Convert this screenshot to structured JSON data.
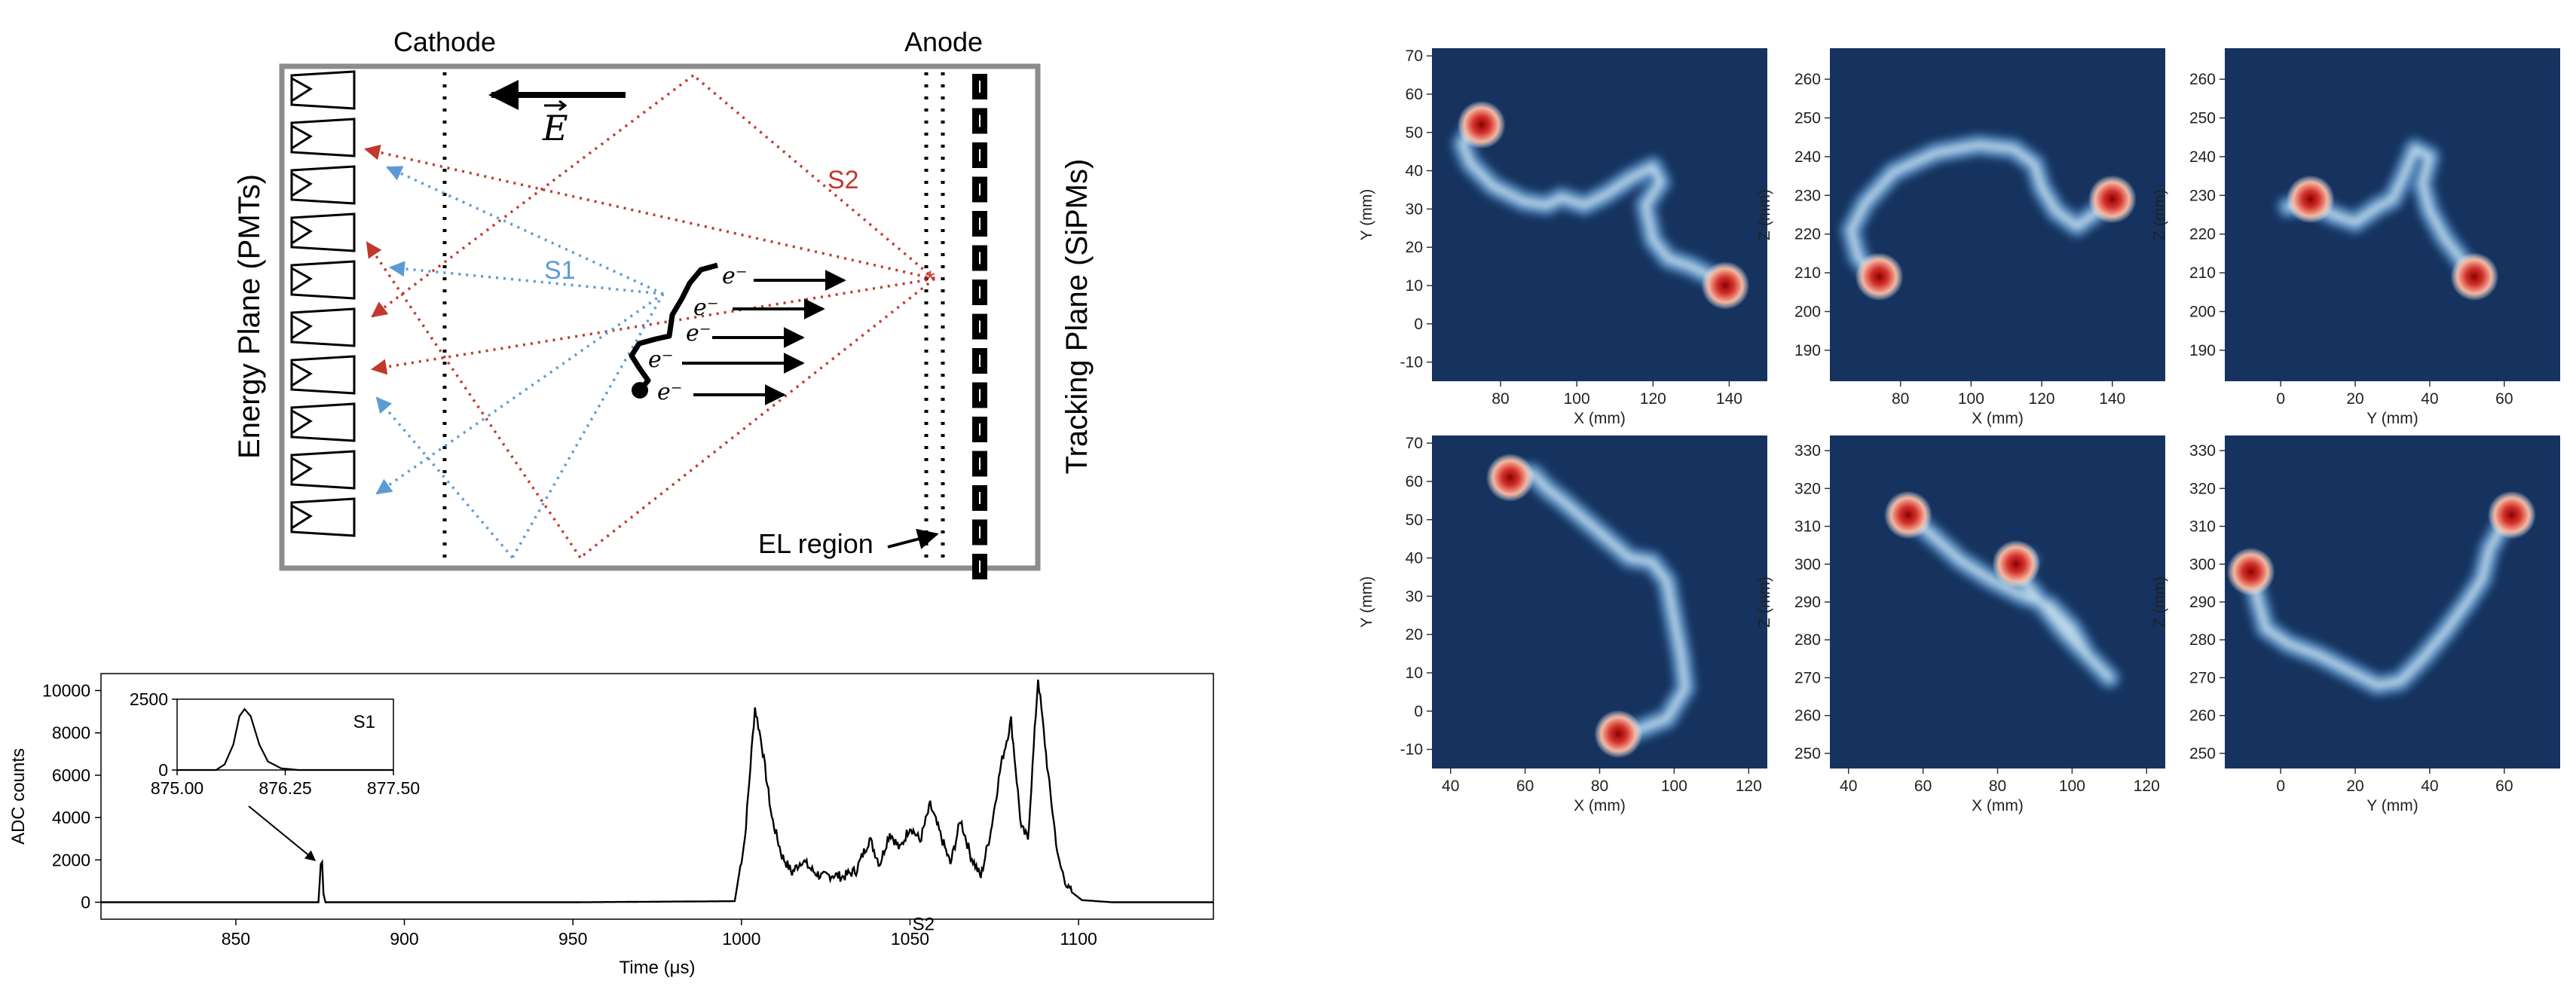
{
  "diagram": {
    "cathode_label": "Cathode",
    "anode_label": "Anode",
    "energy_plane_label": "Energy Plane (PMTs)",
    "tracking_plane_label": "Tracking Plane (SiPMs)",
    "field_label": "E",
    "s1_label": "S1",
    "s2_label": "S2",
    "el_region_label": "EL region",
    "electron_label": "e⁻",
    "colors": {
      "frame": "#8c8c8c",
      "s1": "#5b9bd5",
      "s2": "#c0392b",
      "ink": "#000000"
    }
  },
  "waveform": {
    "chart_data": {
      "type": "line",
      "xlabel": "Time (μs)",
      "ylabel": "ADC counts",
      "xlim": [
        810,
        1140
      ],
      "ylim": [
        -800,
        10800
      ],
      "xticks": [
        "850",
        "900",
        "950",
        "1000",
        "1050",
        "1100"
      ],
      "yticks": [
        "0",
        "2000",
        "4000",
        "6000",
        "8000",
        "10000"
      ],
      "annotations": [
        "S2"
      ],
      "series": [
        {
          "x": [
            810,
            874.5,
            875.2,
            875.6,
            876.0,
            876.6,
            900,
            950,
            998,
            1001,
            1004,
            1006,
            1009,
            1012,
            1015,
            1018,
            1021,
            1024,
            1027,
            1030,
            1034,
            1038,
            1041,
            1044,
            1047,
            1050,
            1053,
            1056,
            1059,
            1062,
            1065,
            1068,
            1071,
            1074,
            1077,
            1080,
            1083,
            1085,
            1088,
            1091,
            1094,
            1097,
            1101,
            1110,
            1140
          ],
          "y": [
            0,
            0,
            1800,
            1900,
            400,
            0,
            0,
            0,
            50,
            3000,
            9200,
            7500,
            4000,
            2200,
            1400,
            2000,
            1500,
            1200,
            1300,
            1200,
            1500,
            3000,
            1800,
            3300,
            2500,
            3600,
            2900,
            4600,
            3200,
            1800,
            3900,
            2200,
            1200,
            3400,
            6500,
            8600,
            3500,
            3000,
            10600,
            6000,
            2000,
            600,
            100,
            0,
            0
          ]
        }
      ],
      "inset": {
        "label": "S1",
        "xlim": [
          875.0,
          877.5
        ],
        "ylim": [
          0,
          2500
        ],
        "xticks": [
          "875.00",
          "876.25",
          "877.50"
        ],
        "yticks": [
          "0",
          "2500"
        ],
        "x": [
          875.0,
          875.45,
          875.55,
          875.65,
          875.72,
          875.78,
          875.85,
          875.95,
          876.05,
          876.2,
          876.4,
          877.5
        ],
        "y": [
          0,
          0,
          200,
          900,
          1900,
          2150,
          1900,
          900,
          300,
          60,
          0,
          0
        ]
      }
    }
  },
  "tracks": {
    "chart_data": [
      {
        "type": "heatmap",
        "xlabel": "X (mm)",
        "ylabel": "Y (mm)",
        "xlim": [
          62,
          150
        ],
        "ylim": [
          -15,
          72
        ],
        "xticks": [
          "80",
          "100",
          "120",
          "140"
        ],
        "yticks": [
          "-10",
          "0",
          "10",
          "20",
          "30",
          "40",
          "50",
          "60",
          "70"
        ],
        "xtick_values": [
          80,
          100,
          120,
          140
        ],
        "ytick_values": [
          -10,
          0,
          10,
          20,
          30,
          40,
          50,
          60,
          70
        ],
        "path": [
          [
            72,
            50
          ],
          [
            70,
            47
          ],
          [
            72,
            42
          ],
          [
            78,
            36
          ],
          [
            86,
            32
          ],
          [
            92,
            31
          ],
          [
            96,
            33
          ],
          [
            102,
            31
          ],
          [
            108,
            34
          ],
          [
            114,
            38
          ],
          [
            120,
            41
          ],
          [
            122,
            37
          ],
          [
            118,
            31
          ],
          [
            120,
            22
          ],
          [
            124,
            17
          ],
          [
            130,
            15
          ],
          [
            136,
            12
          ],
          [
            139,
            10
          ]
        ],
        "blobs": [
          [
            75,
            52
          ],
          [
            139,
            10
          ]
        ]
      },
      {
        "type": "heatmap",
        "xlabel": "X (mm)",
        "ylabel": "Z (mm)",
        "xlim": [
          60,
          155
        ],
        "ylim": [
          182,
          268
        ],
        "xticks": [
          "80",
          "100",
          "120",
          "140"
        ],
        "yticks": [
          "190",
          "200",
          "210",
          "220",
          "230",
          "240",
          "250",
          "260"
        ],
        "xtick_values": [
          80,
          100,
          120,
          140
        ],
        "ytick_values": [
          190,
          200,
          210,
          220,
          230,
          240,
          250,
          260
        ],
        "path": [
          [
            73,
            209
          ],
          [
            68,
            214
          ],
          [
            66,
            221
          ],
          [
            70,
            228
          ],
          [
            78,
            236
          ],
          [
            90,
            241
          ],
          [
            102,
            243
          ],
          [
            112,
            242
          ],
          [
            118,
            238
          ],
          [
            120,
            232
          ],
          [
            124,
            226
          ],
          [
            130,
            222
          ],
          [
            136,
            226
          ],
          [
            140,
            229
          ]
        ],
        "blobs": [
          [
            140,
            229
          ],
          [
            74,
            209
          ]
        ]
      },
      {
        "type": "heatmap",
        "xlabel": "Y (mm)",
        "ylabel": "Z (mm)",
        "xlim": [
          -15,
          75
        ],
        "ylim": [
          182,
          268
        ],
        "xticks": [
          "0",
          "20",
          "40",
          "60"
        ],
        "yticks": [
          "190",
          "200",
          "210",
          "220",
          "230",
          "240",
          "250",
          "260"
        ],
        "xtick_values": [
          0,
          20,
          40,
          60
        ],
        "ytick_values": [
          190,
          200,
          210,
          220,
          230,
          240,
          250,
          260
        ],
        "path": [
          [
            2,
            227
          ],
          [
            8,
            228
          ],
          [
            14,
            225
          ],
          [
            20,
            223
          ],
          [
            26,
            227
          ],
          [
            30,
            229
          ],
          [
            33,
            235
          ],
          [
            36,
            242
          ],
          [
            40,
            240
          ],
          [
            38,
            233
          ],
          [
            40,
            226
          ],
          [
            44,
            219
          ],
          [
            48,
            214
          ],
          [
            52,
            209
          ]
        ],
        "blobs": [
          [
            8,
            229
          ],
          [
            52,
            209
          ]
        ]
      },
      {
        "type": "heatmap",
        "xlabel": "X (mm)",
        "ylabel": "Y (mm)",
        "xlim": [
          35,
          125
        ],
        "ylim": [
          -15,
          72
        ],
        "xticks": [
          "40",
          "60",
          "80",
          "100",
          "120"
        ],
        "yticks": [
          "-10",
          "0",
          "10",
          "20",
          "30",
          "40",
          "50",
          "60",
          "70"
        ],
        "xtick_values": [
          40,
          60,
          80,
          100,
          120
        ],
        "ytick_values": [
          -10,
          0,
          10,
          20,
          30,
          40,
          50,
          60,
          70
        ],
        "path": [
          [
            55,
            62
          ],
          [
            62,
            62
          ],
          [
            66,
            58
          ],
          [
            70,
            55
          ],
          [
            76,
            50
          ],
          [
            82,
            45
          ],
          [
            88,
            40
          ],
          [
            94,
            39
          ],
          [
            98,
            34
          ],
          [
            100,
            24
          ],
          [
            102,
            14
          ],
          [
            103,
            6
          ],
          [
            98,
            -2
          ],
          [
            90,
            -5
          ],
          [
            84,
            -6
          ]
        ],
        "blobs": [
          [
            56,
            61
          ],
          [
            85,
            -6
          ]
        ]
      },
      {
        "type": "heatmap",
        "xlabel": "X (mm)",
        "ylabel": "Z (mm)",
        "xlim": [
          35,
          125
        ],
        "ylim": [
          246,
          334
        ],
        "xticks": [
          "40",
          "60",
          "80",
          "100",
          "120"
        ],
        "yticks": [
          "250",
          "260",
          "270",
          "280",
          "290",
          "300",
          "310",
          "320",
          "330"
        ],
        "xtick_values": [
          40,
          60,
          80,
          100,
          120
        ],
        "ytick_values": [
          250,
          260,
          270,
          280,
          290,
          300,
          310,
          320,
          330
        ],
        "path": [
          [
            56,
            313
          ],
          [
            62,
            308
          ],
          [
            70,
            301
          ],
          [
            78,
            296
          ],
          [
            86,
            292
          ],
          [
            94,
            289
          ],
          [
            100,
            283
          ],
          [
            104,
            276
          ],
          [
            110,
            270
          ],
          [
            106,
            274
          ],
          [
            98,
            282
          ],
          [
            90,
            292
          ],
          [
            84,
            299
          ],
          [
            88,
            301
          ]
        ],
        "blobs": [
          [
            56,
            313
          ],
          [
            85,
            300
          ]
        ]
      },
      {
        "type": "heatmap",
        "xlabel": "Y (mm)",
        "ylabel": "Z (mm)",
        "xlim": [
          -15,
          75
        ],
        "ylim": [
          246,
          334
        ],
        "xticks": [
          "0",
          "20",
          "40",
          "60"
        ],
        "yticks": [
          "250",
          "260",
          "270",
          "280",
          "290",
          "300",
          "310",
          "320",
          "330"
        ],
        "xtick_values": [
          0,
          20,
          40,
          60
        ],
        "ytick_values": [
          250,
          260,
          270,
          280,
          290,
          300,
          310,
          320,
          330
        ],
        "path": [
          [
            -8,
            298
          ],
          [
            -6,
            290
          ],
          [
            -4,
            283
          ],
          [
            2,
            279
          ],
          [
            10,
            276
          ],
          [
            18,
            272
          ],
          [
            26,
            268
          ],
          [
            32,
            269
          ],
          [
            38,
            275
          ],
          [
            44,
            282
          ],
          [
            50,
            290
          ],
          [
            54,
            296
          ],
          [
            56,
            304
          ],
          [
            60,
            311
          ],
          [
            64,
            313
          ]
        ],
        "blobs": [
          [
            -8,
            298
          ],
          [
            62,
            313
          ]
        ]
      }
    ]
  }
}
